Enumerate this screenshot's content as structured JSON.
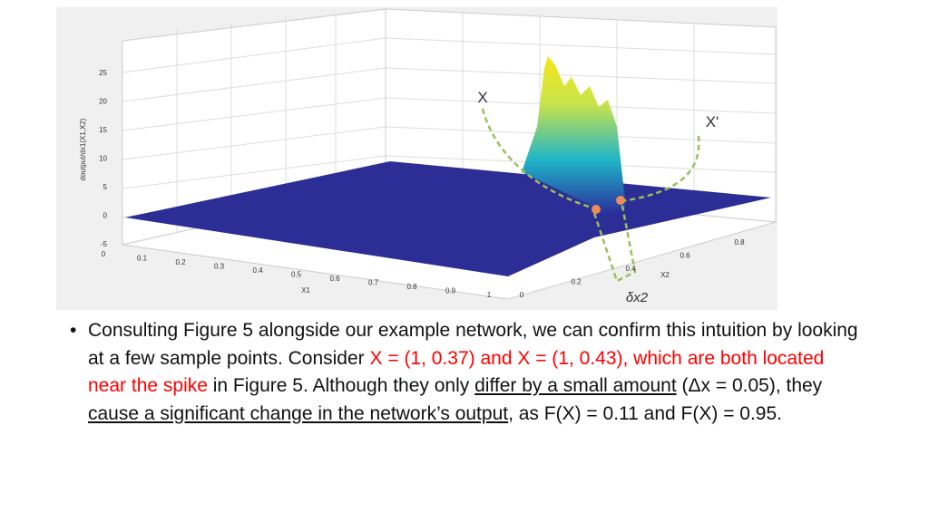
{
  "figure": {
    "z_label": "doutput/dx1(X1,X2)",
    "z_ticks": [
      "25",
      "20",
      "15",
      "10",
      "5",
      "0",
      "-5"
    ],
    "x1_label": "X1",
    "x1_ticks": [
      "0",
      "0.1",
      "0.2",
      "0.3",
      "0.4",
      "0.5",
      "0.6",
      "0.7",
      "0.8",
      "0.9",
      "1"
    ],
    "x2_label": "X2",
    "x2_ticks": [
      "0",
      "0.2",
      "0.4",
      "0.6",
      "0.8"
    ],
    "annotations": [
      "X",
      "X'",
      "δx2"
    ]
  },
  "bullet": {
    "runs": [
      {
        "text": "Consulting Figure 5 alongside our example network, we can confirm this intuition by looking at a few sample points. Consider "
      },
      {
        "text": "X = (1, 0.37) and X = (1, 0.43), which are both located near the spike",
        "color": "red"
      },
      {
        "text": " in Figure 5. Although they only "
      },
      {
        "text": "differ by a small amount",
        "underline": true
      },
      {
        "text": " (Δx = 0.05), they "
      },
      {
        "text": "cause a significant change in the network’s output",
        "underline": true
      },
      {
        "text": ", as F(X) = 0.11 and F(X) = 0.95."
      }
    ]
  }
}
